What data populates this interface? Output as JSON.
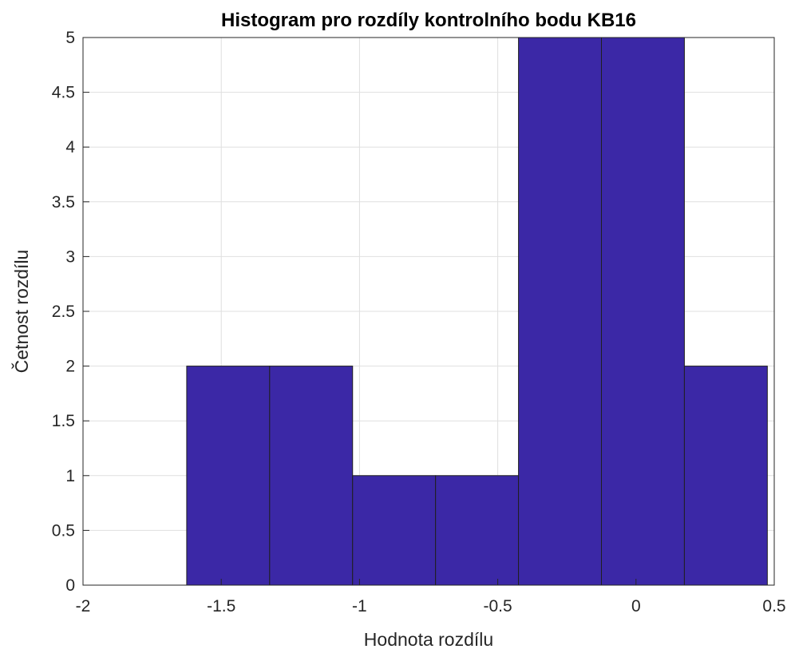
{
  "chart_data": {
    "type": "bar",
    "title": "Histogram pro rozdíly kontrolního bodu KB16",
    "xlabel": "Hodnota rozdílu",
    "ylabel": "Četnost rozdílu",
    "xlim": [
      -2,
      0.5
    ],
    "ylim": [
      0,
      5
    ],
    "grid": true,
    "bar_color": "#3b28a6",
    "edge_color": "#1f1f1f",
    "bin_edges": [
      -1.625,
      -1.325,
      -1.025,
      -0.725,
      -0.425,
      -0.125,
      0.175,
      0.475
    ],
    "values": [
      2,
      2,
      1,
      1,
      5,
      5,
      2
    ],
    "xticks": [
      -2,
      -1.5,
      -1,
      -0.5,
      0,
      0.5
    ],
    "xtick_labels": [
      "-2",
      "-1.5",
      "-1",
      "-0.5",
      "0",
      "0.5"
    ],
    "yticks": [
      0,
      0.5,
      1,
      1.5,
      2,
      2.5,
      3,
      3.5,
      4,
      4.5,
      5
    ],
    "ytick_labels": [
      "0",
      "0.5",
      "1",
      "1.5",
      "2",
      "2.5",
      "3",
      "3.5",
      "4",
      "4.5",
      "5"
    ]
  }
}
